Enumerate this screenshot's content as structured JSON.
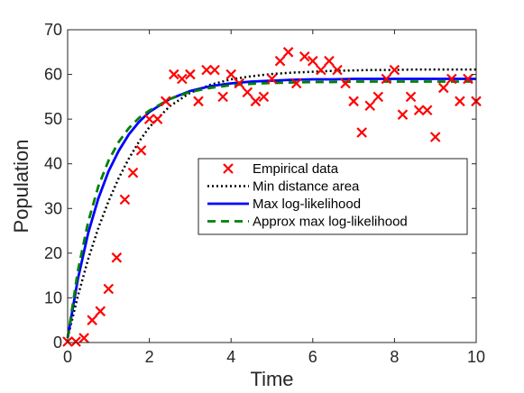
{
  "chart_data": {
    "type": "scatter",
    "title": "",
    "xlabel": "Time",
    "ylabel": "Population",
    "xlim": [
      0,
      10
    ],
    "ylim": [
      0,
      70
    ],
    "x_ticks": [
      0,
      2,
      4,
      6,
      8,
      10
    ],
    "y_ticks": [
      0,
      10,
      20,
      30,
      40,
      50,
      60,
      70
    ],
    "grid": false,
    "legend_position": "center-right",
    "series": [
      {
        "name": "Empirical data",
        "kind": "scatter",
        "marker": "x",
        "color": "#ff0000",
        "points": [
          [
            0.0,
            0.2
          ],
          [
            0.2,
            0.2
          ],
          [
            0.4,
            1.0
          ],
          [
            0.6,
            5.0
          ],
          [
            0.8,
            7.0
          ],
          [
            1.0,
            12.0
          ],
          [
            1.2,
            19.0
          ],
          [
            1.4,
            32.0
          ],
          [
            1.6,
            38.0
          ],
          [
            1.8,
            43.0
          ],
          [
            2.0,
            50.0
          ],
          [
            2.2,
            50.0
          ],
          [
            2.4,
            54.0
          ],
          [
            2.6,
            60.0
          ],
          [
            2.8,
            59.0
          ],
          [
            3.0,
            60.0
          ],
          [
            3.2,
            54.0
          ],
          [
            3.4,
            61.0
          ],
          [
            3.6,
            61.0
          ],
          [
            3.8,
            55.0
          ],
          [
            4.0,
            60.0
          ],
          [
            4.2,
            58.0
          ],
          [
            4.4,
            56.0
          ],
          [
            4.6,
            54.0
          ],
          [
            4.8,
            55.0
          ],
          [
            5.0,
            59.0
          ],
          [
            5.2,
            63.0
          ],
          [
            5.4,
            65.0
          ],
          [
            5.6,
            58.0
          ],
          [
            5.8,
            64.0
          ],
          [
            6.0,
            63.0
          ],
          [
            6.2,
            61.0
          ],
          [
            6.4,
            63.0
          ],
          [
            6.6,
            61.0
          ],
          [
            6.8,
            58.0
          ],
          [
            7.0,
            54.0
          ],
          [
            7.2,
            47.0
          ],
          [
            7.4,
            53.0
          ],
          [
            7.6,
            55.0
          ],
          [
            7.8,
            59.0
          ],
          [
            8.0,
            61.0
          ],
          [
            8.2,
            51.0
          ],
          [
            8.4,
            55.0
          ],
          [
            8.6,
            52.0
          ],
          [
            8.8,
            52.0
          ],
          [
            9.0,
            46.0
          ],
          [
            9.2,
            57.0
          ],
          [
            9.4,
            59.0
          ],
          [
            9.6,
            54.0
          ],
          [
            9.8,
            59.0
          ],
          [
            10.0,
            54.0
          ]
        ]
      },
      {
        "name": "Min distance area",
        "kind": "line",
        "style": "dotted",
        "color": "#000000",
        "x": [
          0,
          0.25,
          0.5,
          0.75,
          1,
          1.25,
          1.5,
          1.75,
          2,
          2.5,
          3,
          3.5,
          4,
          4.5,
          5,
          5.5,
          6,
          6.5,
          7,
          7.5,
          8,
          8.5,
          9,
          9.5,
          10
        ],
        "y": [
          1.0,
          10.4,
          18.6,
          25.6,
          31.6,
          36.8,
          41.2,
          45.0,
          48.2,
          52.9,
          55.9,
          57.7,
          58.9,
          59.6,
          60.1,
          60.4,
          60.6,
          60.8,
          60.9,
          61.0,
          61.0,
          61.1,
          61.1,
          61.1,
          61.1
        ]
      },
      {
        "name": "Max log-likelihood",
        "kind": "line",
        "style": "solid",
        "color": "#0000ff",
        "x": [
          0,
          0.25,
          0.5,
          0.75,
          1,
          1.25,
          1.5,
          1.75,
          2,
          2.5,
          3,
          3.5,
          4,
          4.5,
          5,
          5.5,
          6,
          6.5,
          7,
          7.5,
          8,
          8.5,
          9,
          9.5,
          10
        ],
        "y": [
          1.0,
          14.2,
          24.4,
          32.2,
          38.3,
          42.9,
          46.6,
          49.4,
          51.6,
          54.5,
          56.3,
          57.4,
          58.0,
          58.4,
          58.6,
          58.8,
          58.9,
          58.9,
          59.0,
          59.0,
          59.0,
          59.0,
          59.0,
          59.0,
          59.0
        ]
      },
      {
        "name": "Approx max log-likelihood",
        "kind": "line",
        "style": "dashed",
        "color": "#008000",
        "x": [
          0,
          0.25,
          0.5,
          0.75,
          1,
          1.25,
          1.5,
          1.75,
          2,
          2.5,
          3,
          3.5,
          4,
          4.5,
          5,
          5.5,
          6,
          6.5,
          7,
          7.5,
          8,
          8.5,
          9,
          9.5,
          10
        ],
        "y": [
          1.0,
          16.0,
          26.9,
          34.9,
          40.7,
          44.9,
          48.0,
          50.3,
          51.9,
          54.5,
          56.1,
          57.0,
          57.6,
          57.9,
          58.1,
          58.2,
          58.3,
          58.3,
          58.4,
          58.4,
          58.4,
          58.4,
          58.4,
          58.4,
          58.4
        ]
      }
    ]
  }
}
